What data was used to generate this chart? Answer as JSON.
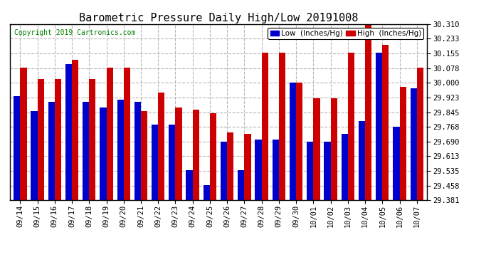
{
  "title": "Barometric Pressure Daily High/Low 20191008",
  "copyright": "Copyright 2019 Cartronics.com",
  "legend_low": "Low  (Inches/Hg)",
  "legend_high": "High  (Inches/Hg)",
  "dates": [
    "09/14",
    "09/15",
    "09/16",
    "09/17",
    "09/18",
    "09/19",
    "09/20",
    "09/21",
    "09/22",
    "09/23",
    "09/24",
    "09/25",
    "09/26",
    "09/27",
    "09/28",
    "09/29",
    "09/30",
    "10/01",
    "10/02",
    "10/03",
    "10/04",
    "10/05",
    "10/06",
    "10/07"
  ],
  "low": [
    29.93,
    29.85,
    29.9,
    30.1,
    29.9,
    29.87,
    29.91,
    29.9,
    29.78,
    29.78,
    29.54,
    29.46,
    29.69,
    29.54,
    29.7,
    29.7,
    30.0,
    29.69,
    29.69,
    29.73,
    29.8,
    30.16,
    29.77,
    29.97
  ],
  "high": [
    30.08,
    30.02,
    30.02,
    30.12,
    30.02,
    30.08,
    30.08,
    29.85,
    29.95,
    29.87,
    29.86,
    29.84,
    29.74,
    29.73,
    30.16,
    30.16,
    30.0,
    29.92,
    29.92,
    30.16,
    30.32,
    30.2,
    29.98,
    30.08
  ],
  "ylim_min": 29.381,
  "ylim_max": 30.31,
  "yticks": [
    29.381,
    29.458,
    29.535,
    29.613,
    29.69,
    29.768,
    29.845,
    29.923,
    30.0,
    30.078,
    30.155,
    30.233,
    30.31
  ],
  "bar_color_low": "#0000cc",
  "bar_color_high": "#cc0000",
  "background_color": "#ffffff",
  "grid_color": "#b0b0b0",
  "title_fontsize": 11,
  "copyright_fontsize": 7,
  "tick_fontsize": 7.5,
  "legend_fontsize": 7.5
}
